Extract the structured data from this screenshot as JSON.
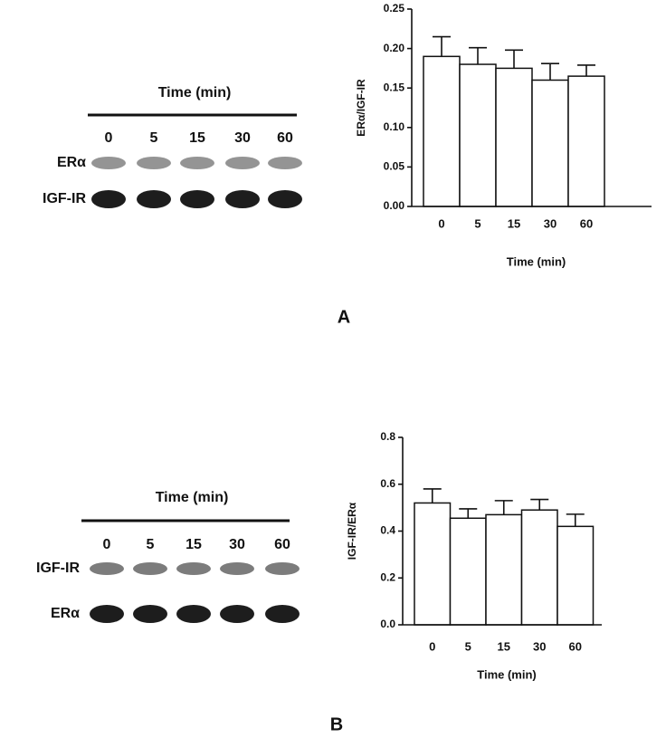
{
  "chart_data": [
    {
      "type": "bar",
      "y_label": "ERα/IGF-IR",
      "x_label": "Time (min)",
      "categories": [
        "0",
        "5",
        "15",
        "30",
        "60"
      ],
      "values": [
        0.19,
        0.18,
        0.175,
        0.16,
        0.165
      ],
      "errors": [
        0.025,
        0.021,
        0.023,
        0.021,
        0.014
      ],
      "color": "#ffffff",
      "ylim": [
        0,
        0.25
      ],
      "yticks": [
        {
          "value": 0,
          "label": "0.00"
        },
        {
          "value": 0.05,
          "label": "0.05"
        },
        {
          "value": 0.1,
          "label": "0.10"
        },
        {
          "value": 0.15,
          "label": "0.15"
        },
        {
          "value": 0.2,
          "label": "0.20"
        },
        {
          "value": 0.25,
          "label": "0.25"
        }
      ]
    },
    {
      "type": "bar",
      "y_label": "IGF-IR/ERα",
      "x_label": "Time (min)",
      "categories": [
        "0",
        "5",
        "15",
        "30",
        "60"
      ],
      "values": [
        0.52,
        0.455,
        0.47,
        0.49,
        0.42
      ],
      "errors": [
        0.06,
        0.04,
        0.06,
        0.045,
        0.052
      ],
      "color": "#ffffff",
      "ylim": [
        0,
        0.8
      ],
      "yticks": [
        {
          "value": 0,
          "label": "0.0"
        },
        {
          "value": 0.2,
          "label": "0.2"
        },
        {
          "value": 0.4,
          "label": "0.4"
        },
        {
          "value": 0.6,
          "label": "0.6"
        },
        {
          "value": 0.8,
          "label": "0.8"
        }
      ]
    }
  ],
  "blots": [
    {
      "title": "Time (min)",
      "lanes": [
        "0",
        "5",
        "15",
        "30",
        "60"
      ],
      "rows": [
        "ERα",
        "IGF-IR"
      ]
    },
    {
      "title": "Time (min)",
      "lanes": [
        "0",
        "5",
        "15",
        "30",
        "60"
      ],
      "rows": [
        "IGF-IR",
        "ERα"
      ]
    }
  ],
  "panels": [
    "A",
    "B"
  ]
}
